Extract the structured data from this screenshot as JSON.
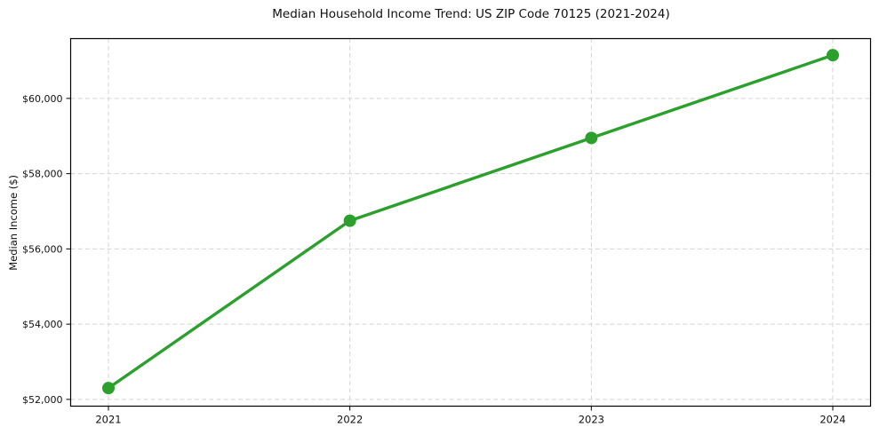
{
  "chart_data": {
    "type": "line",
    "title": "Median Household Income Trend: US ZIP Code 70125 (2021-2024)",
    "xlabel": "",
    "ylabel": "Median Income ($)",
    "categories": [
      "2021",
      "2022",
      "2023",
      "2024"
    ],
    "values": [
      52300,
      56750,
      58950,
      61150
    ],
    "y_ticks": [
      52000,
      54000,
      56000,
      58000,
      60000
    ],
    "y_tick_labels": [
      "$52,000",
      "$54,000",
      "$56,000",
      "$58,000",
      "$60,000"
    ],
    "ylim": [
      51820,
      61590
    ],
    "grid": true,
    "grid_style": "dashed",
    "legend_position": "none",
    "line_color": "#2ca02c",
    "marker": "circle",
    "marker_radius": 7,
    "background_color": "#ffffff",
    "frame_color": "#000000"
  }
}
